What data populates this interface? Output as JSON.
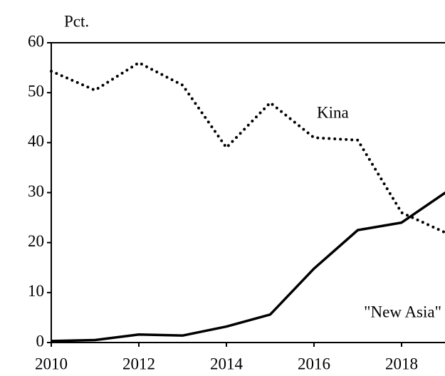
{
  "chart_data": {
    "type": "line",
    "y_axis_label": "Pct.",
    "x": [
      2010,
      2011,
      2012,
      2013,
      2014,
      2015,
      2016,
      2017,
      2018,
      2019
    ],
    "series": [
      {
        "name": "Kina",
        "color": "#000000",
        "style": "dotted",
        "values": [
          54.3,
          50.5,
          56,
          51.5,
          39,
          48,
          41,
          40.5,
          26,
          22
        ]
      },
      {
        "name": "\"New Asia\"",
        "color": "#000000",
        "style": "solid",
        "values": [
          0.3,
          0.5,
          1.6,
          1.4,
          3.2,
          5.6,
          14.8,
          22.5,
          24,
          30
        ]
      }
    ],
    "xlim": [
      2010,
      2019
    ],
    "xticks": [
      2010,
      2012,
      2014,
      2016,
      2018
    ],
    "ylim": [
      0,
      60
    ],
    "yticks": [
      0,
      10,
      20,
      30,
      40,
      50,
      60
    ]
  }
}
